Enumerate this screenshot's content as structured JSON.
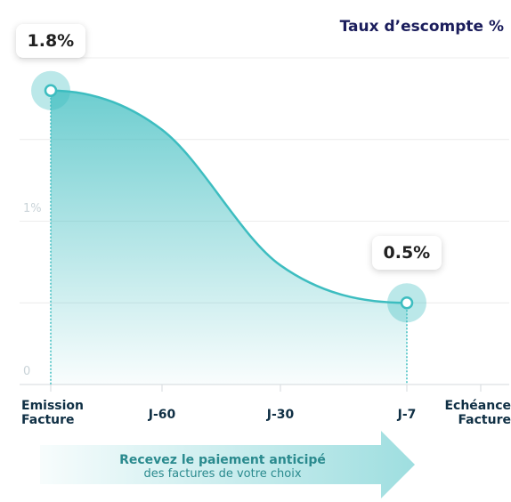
{
  "chart_data": {
    "type": "area",
    "title": "Taux d’escompte %",
    "arrow_title": "Recevez le paiement anticipé",
    "arrow_subtitle": "des factures de votre choix",
    "categories": [
      "Emission Facture",
      "J-60",
      "J-30",
      "J-7",
      "Echéance Facture"
    ],
    "series": [
      {
        "name": "Taux d’escompte",
        "color": "#3dbdc0",
        "values": [
          1.8,
          1.56,
          0.73,
          0.5,
          null
        ],
        "value_labels": [
          "1.8%",
          null,
          null,
          "0.5%",
          null
        ]
      }
    ],
    "ylim": [
      0,
      2
    ],
    "yticks": [
      0,
      {
        "value": 1,
        "label": "1%"
      }
    ],
    "ygrid": [
      0,
      0.5,
      1,
      1.5,
      2
    ]
  }
}
